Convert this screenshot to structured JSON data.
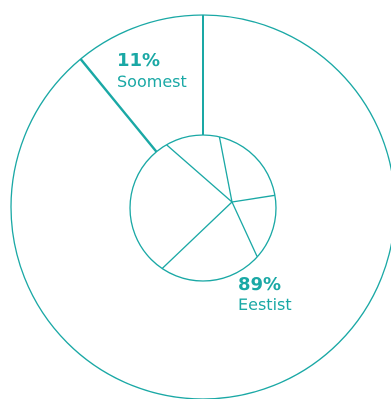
{
  "chart_data": {
    "type": "pie",
    "color": "#1aa8a5",
    "label_color": "#1aa8a5",
    "outer_slices": [
      {
        "label": "Soomest",
        "value": 11,
        "value_text": "11%"
      },
      {
        "label": "Eestist",
        "value": 89,
        "value_text": "89%"
      }
    ],
    "inner_breakdown": {
      "note_hidden": true,
      "boundaries_deg": [
        13,
        80,
        132,
        214,
        330
      ]
    }
  }
}
